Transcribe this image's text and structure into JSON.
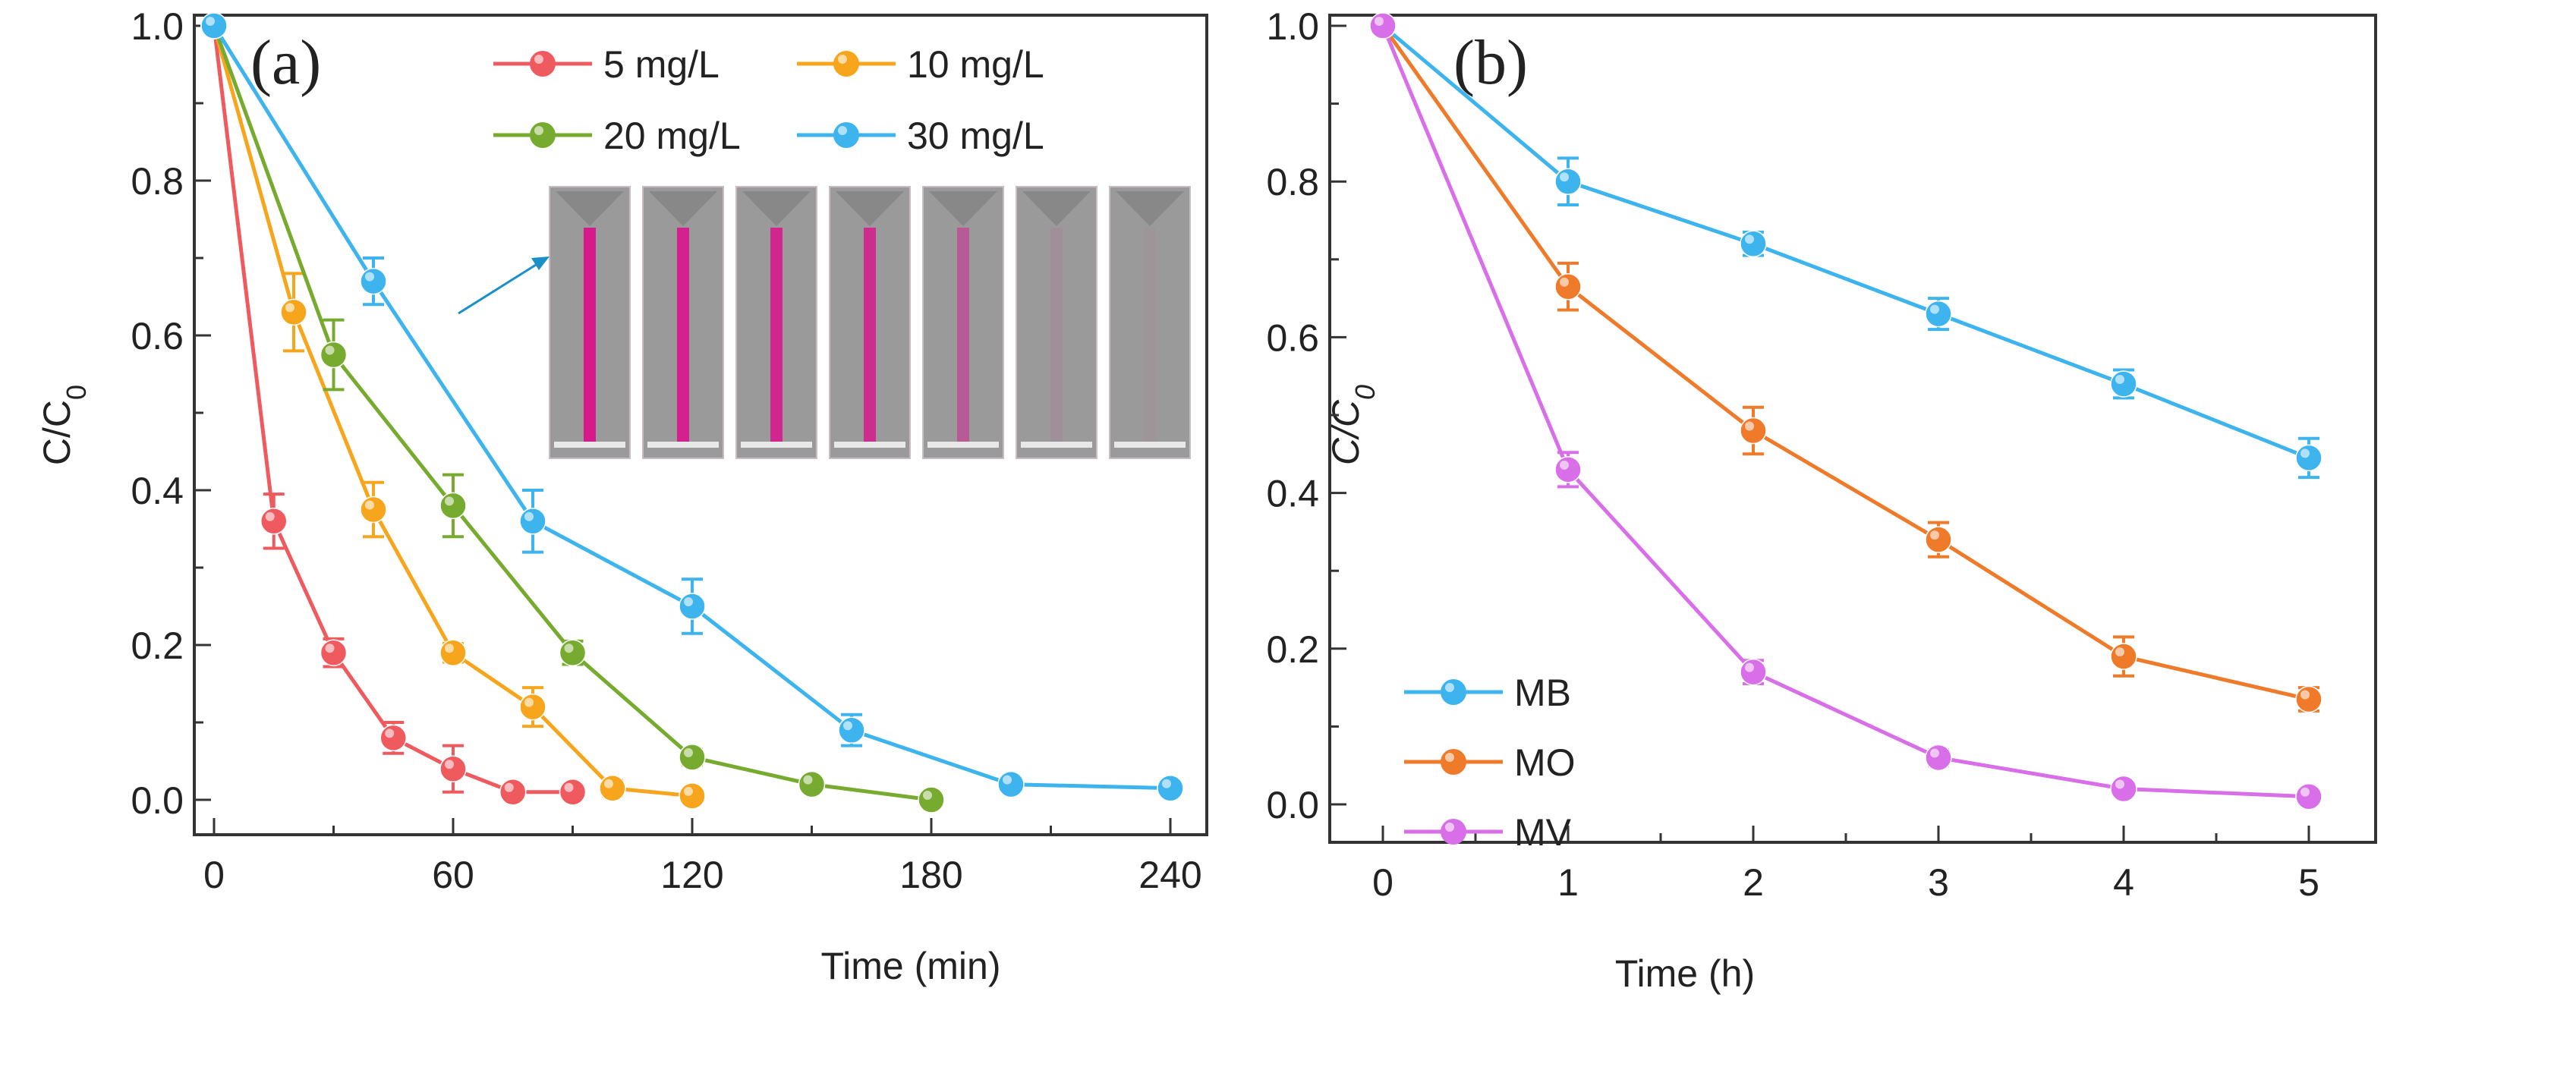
{
  "chart_data": [
    {
      "type": "line",
      "panel_label": "(a)",
      "xlabel": "Time (min)",
      "ylabel": "C/C0",
      "xlim": [
        -5,
        250
      ],
      "ylim": [
        -0.05,
        1.05
      ],
      "xticks": [
        0,
        60,
        120,
        180,
        240
      ],
      "yticks": [
        0.0,
        0.2,
        0.4,
        0.6,
        0.8,
        1.0
      ],
      "tick_labels_x": [
        "0",
        "60",
        "120",
        "180",
        "240"
      ],
      "tick_labels_y": [
        "0.0",
        "0.2",
        "0.4",
        "0.6",
        "0.8",
        "1.0"
      ],
      "grid": false,
      "legend_placement": "top-right",
      "inset": "photo of seven cuvettes with magenta dye fading from left to right, arrow pointing from 30 mg/L curve",
      "series": [
        {
          "name": "5 mg/L",
          "color": "#ef5a5f",
          "x": [
            0,
            15,
            30,
            45,
            60,
            75,
            90
          ],
          "y": [
            1.0,
            0.36,
            0.19,
            0.08,
            0.04,
            0.01,
            0.01
          ],
          "err": [
            0,
            0.035,
            0.018,
            0.02,
            0.03,
            0.008,
            0.008
          ]
        },
        {
          "name": "10 mg/L",
          "color": "#f7a51c",
          "x": [
            0,
            20,
            40,
            60,
            80,
            100,
            120
          ],
          "y": [
            1.0,
            0.63,
            0.375,
            0.19,
            0.12,
            0.015,
            0.005
          ],
          "err": [
            0,
            0.05,
            0.035,
            0.012,
            0.025,
            0.01,
            0.005
          ]
        },
        {
          "name": "20 mg/L",
          "color": "#77ab2f",
          "x": [
            0,
            30,
            60,
            90,
            120,
            150,
            180
          ],
          "y": [
            1.0,
            0.575,
            0.38,
            0.19,
            0.055,
            0.02,
            0.0
          ],
          "err": [
            0,
            0.045,
            0.04,
            0.015,
            0.01,
            0.008,
            0.005
          ]
        },
        {
          "name": "30 mg/L",
          "color": "#3db4ee",
          "x": [
            0,
            40,
            80,
            120,
            160,
            200,
            240
          ],
          "y": [
            1.0,
            0.67,
            0.36,
            0.25,
            0.09,
            0.02,
            0.015
          ],
          "err": [
            0,
            0.03,
            0.04,
            0.035,
            0.02,
            0.008,
            0.008
          ]
        }
      ]
    },
    {
      "type": "line",
      "panel_label": "(b)",
      "xlabel": "Time (h)",
      "ylabel": "C/C0",
      "xlim": [
        -0.15,
        5.2
      ],
      "ylim": [
        -0.05,
        1.05
      ],
      "xticks": [
        0,
        1,
        2,
        3,
        4,
        5
      ],
      "yticks": [
        0.0,
        0.2,
        0.4,
        0.6,
        0.8,
        1.0
      ],
      "tick_labels_x": [
        "0",
        "1",
        "2",
        "3",
        "4",
        "5"
      ],
      "tick_labels_y": [
        "0.0",
        "0.2",
        "0.4",
        "0.6",
        "0.8",
        "1.0"
      ],
      "grid": false,
      "legend_placement": "bottom-left",
      "series": [
        {
          "name": "MB",
          "color": "#3db4ee",
          "x": [
            0,
            1,
            2,
            3,
            4,
            5
          ],
          "y": [
            1.0,
            0.8,
            0.72,
            0.63,
            0.54,
            0.445
          ],
          "err": [
            0,
            0.03,
            0.015,
            0.02,
            0.018,
            0.025
          ]
        },
        {
          "name": "MO",
          "color": "#ee7a2a",
          "x": [
            0,
            1,
            2,
            3,
            4,
            5
          ],
          "y": [
            1.0,
            0.665,
            0.48,
            0.34,
            0.19,
            0.135
          ],
          "err": [
            0,
            0.03,
            0.03,
            0.022,
            0.025,
            0.015
          ]
        },
        {
          "name": "MV",
          "color": "#d86ee8",
          "x": [
            0,
            1,
            2,
            3,
            4,
            5
          ],
          "y": [
            1.0,
            0.43,
            0.17,
            0.06,
            0.02,
            0.01
          ],
          "err": [
            0,
            0.022,
            0.015,
            0.01,
            0.008,
            0.008
          ]
        }
      ]
    }
  ]
}
